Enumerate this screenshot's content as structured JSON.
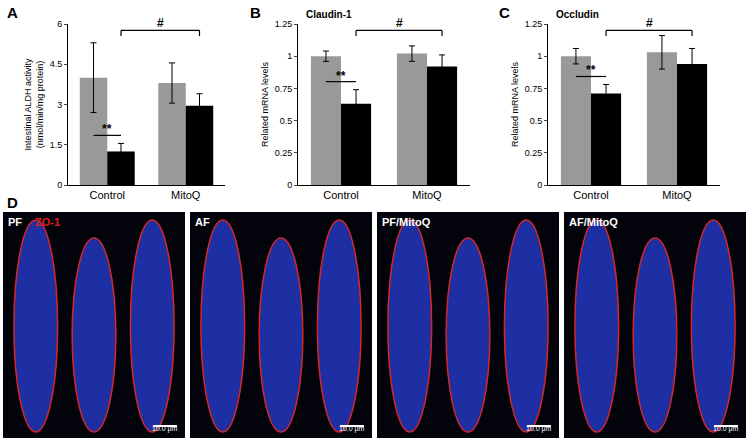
{
  "chart_data": [
    {
      "panel": "A",
      "type": "bar",
      "ylabel": "Intestinal ALDH activity\n(nmol/min/mg protein)",
      "categories": [
        "Control",
        "MitoQ"
      ],
      "series": [
        {
          "color": "#999999",
          "values": [
            4.0,
            3.8
          ],
          "errors": [
            1.3,
            0.75
          ]
        },
        {
          "color": "#000000",
          "values": [
            1.25,
            2.95
          ],
          "errors": [
            0.3,
            0.45
          ]
        }
      ],
      "ylim": [
        0,
        6
      ],
      "yticks": [
        0,
        1.5,
        3,
        4.5,
        6
      ],
      "annotations": [
        "**",
        "#"
      ]
    },
    {
      "panel": "B",
      "type": "bar",
      "title": "Claudin-1",
      "ylabel": "Related mRNA levels",
      "categories": [
        "Control",
        "MitoQ"
      ],
      "series": [
        {
          "color": "#999999",
          "values": [
            1.0,
            1.02
          ],
          "errors": [
            0.04,
            0.06
          ]
        },
        {
          "color": "#000000",
          "values": [
            0.63,
            0.92
          ],
          "errors": [
            0.11,
            0.09
          ]
        }
      ],
      "ylim": [
        0,
        1.25
      ],
      "yticks": [
        0,
        0.25,
        0.5,
        0.75,
        1,
        1.25
      ],
      "annotations": [
        "**",
        "#"
      ]
    },
    {
      "panel": "C",
      "type": "bar",
      "title": "Occludin",
      "ylabel": "Related mRNA levels",
      "categories": [
        "Control",
        "MitoQ"
      ],
      "series": [
        {
          "color": "#999999",
          "values": [
            1.0,
            1.03
          ],
          "errors": [
            0.06,
            0.13
          ]
        },
        {
          "color": "#000000",
          "values": [
            0.71,
            0.94
          ],
          "errors": [
            0.07,
            0.12
          ]
        }
      ],
      "ylim": [
        0,
        1.25
      ],
      "yticks": [
        0,
        0.25,
        0.5,
        0.75,
        1,
        1.25
      ],
      "annotations": [
        "**",
        "#"
      ]
    }
  ],
  "image_panel": {
    "panel": "D",
    "scale_bar": "10.0 μm",
    "images": [
      {
        "label": "PF",
        "stain": "ZO-1"
      },
      {
        "label": "AF"
      },
      {
        "label": "PF/MitoQ"
      },
      {
        "label": "AF/MitoQ"
      }
    ]
  }
}
